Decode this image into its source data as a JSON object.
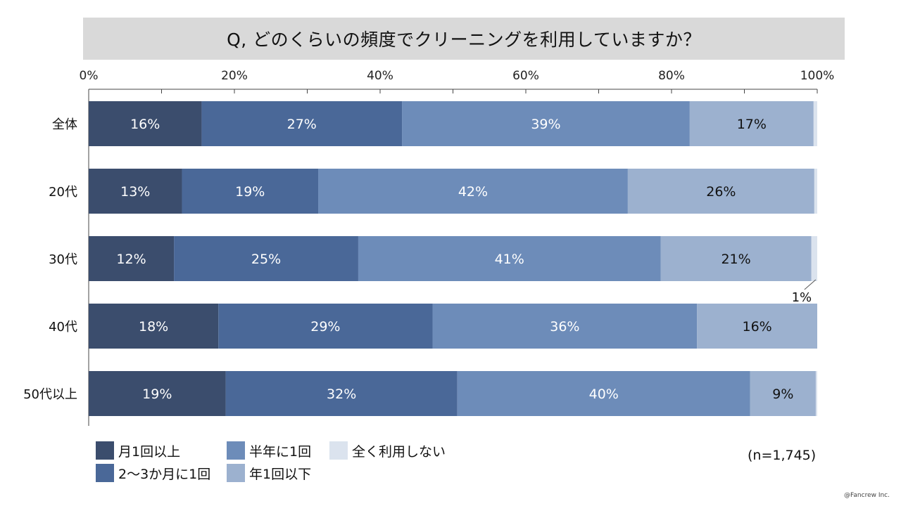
{
  "chart_data": {
    "type": "bar",
    "orientation": "horizontal",
    "stacked": true,
    "title": "Q, どのくらいの頻度でクリーニングを利用していますか？",
    "categories": [
      "全体",
      "20代",
      "30代",
      "40代",
      "50代以上"
    ],
    "x_ticks": [
      "0%",
      "20%",
      "40%",
      "60%",
      "80%",
      "100%"
    ],
    "xlim": [
      0,
      100
    ],
    "series": [
      {
        "name": "月1回以上",
        "color": "#3b4d6d",
        "values": [
          15.5,
          12.8,
          11.7,
          17.8,
          18.8
        ],
        "labels": [
          "16%",
          "13%",
          "12%",
          "18%",
          "19%"
        ]
      },
      {
        "name": "2～3か月に1回",
        "color": "#4a6898",
        "values": [
          27.5,
          18.7,
          25.3,
          29.4,
          31.8
        ],
        "labels": [
          "27%",
          "19%",
          "25%",
          "29%",
          "32%"
        ]
      },
      {
        "name": "半年に1回",
        "color": "#6d8cb9",
        "values": [
          39.5,
          42.5,
          41.5,
          36.3,
          40.2
        ],
        "labels": [
          "39%",
          "42%",
          "41%",
          "36%",
          "40%"
        ]
      },
      {
        "name": "年1回以下",
        "color": "#9cb1cf",
        "values": [
          17.0,
          25.6,
          20.7,
          16.5,
          9.0
        ],
        "labels": [
          "17%",
          "26%",
          "21%",
          "16%",
          "9%"
        ]
      },
      {
        "name": "全く利用しない",
        "color": "#dbe3ee",
        "values": [
          0.5,
          0.4,
          0.8,
          0.0,
          0.2
        ],
        "labels": [
          "",
          "",
          "1%",
          "",
          ""
        ]
      }
    ],
    "callout": {
      "category": "30代",
      "series": "全く利用しない",
      "label": "1%"
    },
    "sample_size": "(n=1,745)",
    "credit": "@Fancrew Inc."
  },
  "legend_items": [
    "月1回以上",
    "2～3か月に1回",
    "半年に1回",
    "年1回以下",
    "全く利用しない"
  ]
}
